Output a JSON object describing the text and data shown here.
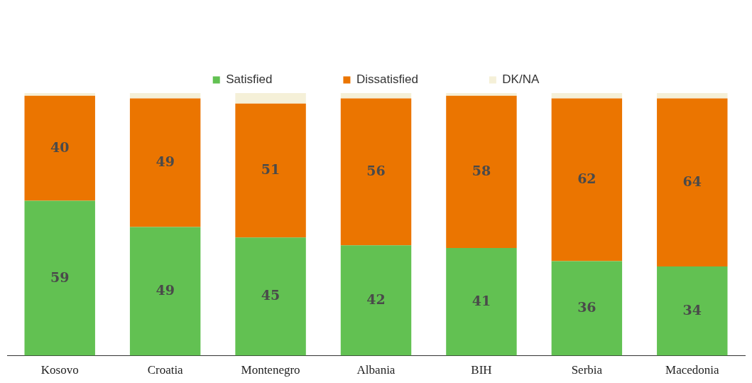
{
  "chart_data": {
    "type": "bar",
    "stacked": true,
    "legend": "top",
    "grid": false,
    "ylim": [
      0,
      100
    ],
    "categories": [
      "Kosovo",
      "Croatia",
      "Montenegro",
      "Albania",
      "BIH",
      "Serbia",
      "Macedonia"
    ],
    "series": [
      {
        "name": "Satisfied",
        "color": "#62c152",
        "values": [
          59,
          49,
          45,
          42,
          41,
          36,
          34
        ],
        "value_labels": [
          "59",
          "49",
          "45",
          "42",
          "41",
          "36",
          "34"
        ]
      },
      {
        "name": "Dissatisfied",
        "color": "#eb7500",
        "values": [
          40,
          49,
          51,
          56,
          58,
          62,
          64
        ],
        "value_labels": [
          "40",
          "49",
          "51",
          "56",
          "58",
          "62",
          "64"
        ]
      },
      {
        "name": "DK/NA",
        "color": "#f5f0d8",
        "values": [
          1,
          2,
          4,
          2,
          1,
          2,
          2
        ],
        "value_labels": [
          null,
          null,
          null,
          null,
          null,
          null,
          null
        ]
      }
    ]
  }
}
